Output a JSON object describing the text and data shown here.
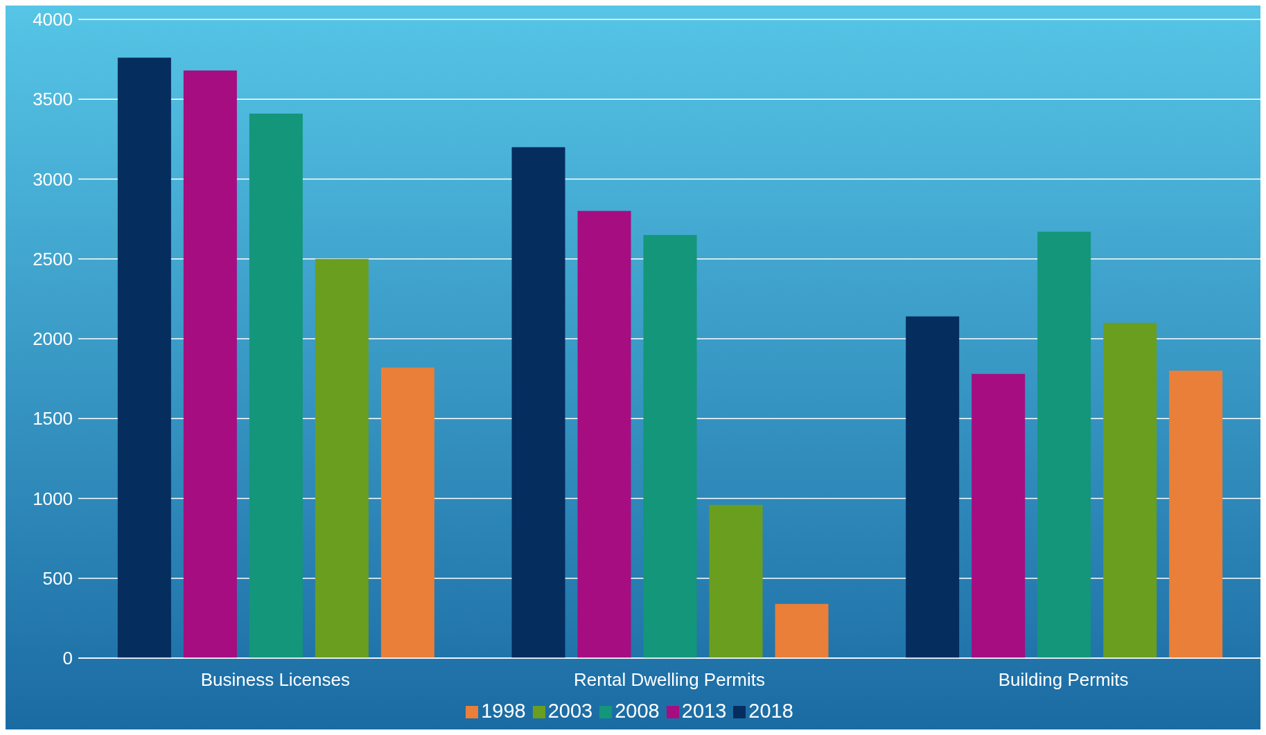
{
  "chart_data": {
    "type": "bar",
    "categories": [
      "Business Licenses",
      "Rental Dwelling Permits",
      "Building Permits"
    ],
    "series": [
      {
        "name": "2018",
        "color": "#052d5e",
        "values": [
          3760,
          3200,
          2140
        ]
      },
      {
        "name": "2013",
        "color": "#a50d80",
        "values": [
          3680,
          2800,
          1780
        ]
      },
      {
        "name": "2008",
        "color": "#14967a",
        "values": [
          3410,
          2650,
          2670
        ]
      },
      {
        "name": "2003",
        "color": "#6a9e1f",
        "values": [
          2500,
          960,
          2100
        ]
      },
      {
        "name": "1998",
        "color": "#e97f38",
        "values": [
          1820,
          340,
          1800
        ]
      }
    ],
    "ylim": [
      0,
      4000
    ],
    "yticks": [
      0,
      500,
      1000,
      1500,
      2000,
      2500,
      3000,
      3500,
      4000
    ],
    "grid": "y",
    "legend": "bottom"
  }
}
